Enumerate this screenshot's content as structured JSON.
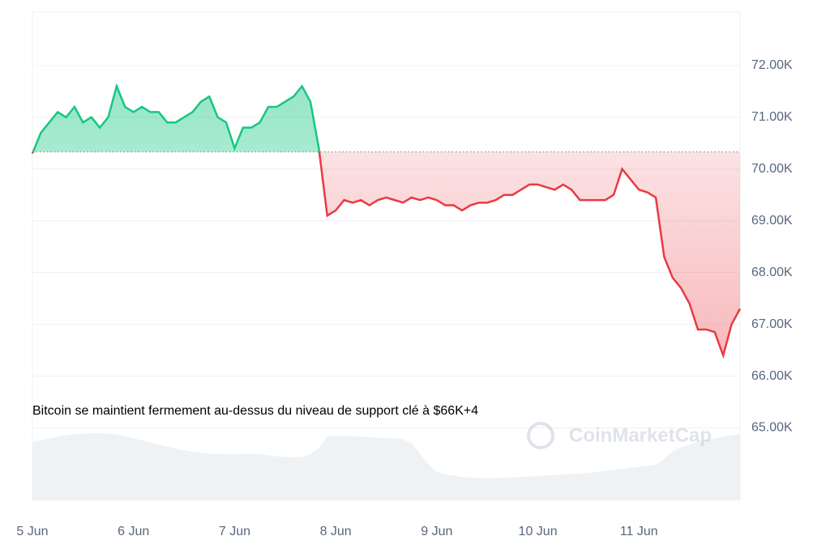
{
  "chart_data": {
    "type": "line",
    "categories": [
      "5 Jun",
      null,
      null,
      null,
      null,
      null,
      null,
      null,
      null,
      null,
      null,
      null,
      "6 Jun",
      null,
      null,
      null,
      null,
      null,
      null,
      null,
      null,
      null,
      null,
      null,
      "7 Jun",
      null,
      null,
      null,
      null,
      null,
      null,
      null,
      null,
      null,
      null,
      null,
      "8 Jun",
      null,
      null,
      null,
      null,
      null,
      null,
      null,
      null,
      null,
      null,
      null,
      "9 Jun",
      null,
      null,
      null,
      null,
      null,
      null,
      null,
      null,
      null,
      null,
      null,
      "10 Jun",
      null,
      null,
      null,
      null,
      null,
      null,
      null,
      null,
      null,
      null,
      null,
      "11 Jun",
      null,
      null,
      null,
      null,
      null,
      null,
      null,
      null,
      null,
      null,
      null,
      null
    ],
    "values": [
      70300,
      70700,
      70900,
      71100,
      71000,
      71200,
      70900,
      71000,
      70800,
      71000,
      71600,
      71200,
      71100,
      71200,
      71100,
      71100,
      70900,
      70900,
      71000,
      71100,
      71300,
      71400,
      71000,
      70900,
      70400,
      70800,
      70800,
      70900,
      71200,
      71200,
      71300,
      71400,
      71600,
      71300,
      70400,
      69100,
      69200,
      69400,
      69350,
      69400,
      69300,
      69400,
      69450,
      69400,
      69350,
      69450,
      69400,
      69450,
      69400,
      69300,
      69300,
      69200,
      69300,
      69350,
      69350,
      69400,
      69500,
      69500,
      69600,
      69700,
      69700,
      69650,
      69600,
      69700,
      69600,
      69400,
      69400,
      69400,
      69400,
      69500,
      70000,
      69800,
      69600,
      69550,
      69450,
      68300,
      67900,
      67700,
      67400,
      66900,
      66900,
      66850,
      66400,
      67000,
      67300
    ],
    "volume": [
      64730,
      64760,
      64800,
      64830,
      64860,
      64880,
      64890,
      64900,
      64900,
      64890,
      64870,
      64840,
      64800,
      64760,
      64720,
      64680,
      64640,
      64600,
      64570,
      64540,
      64520,
      64500,
      64500,
      64490,
      64490,
      64500,
      64500,
      64490,
      64470,
      64450,
      64440,
      64430,
      64440,
      64500,
      64600,
      64840,
      64850,
      64850,
      64840,
      64830,
      64820,
      64810,
      64800,
      64800,
      64780,
      64700,
      64500,
      64300,
      64150,
      64100,
      64080,
      64050,
      64040,
      64030,
      64030,
      64030,
      64040,
      64040,
      64050,
      64060,
      64070,
      64080,
      64090,
      64100,
      64110,
      64120,
      64130,
      64150,
      64170,
      64190,
      64210,
      64230,
      64250,
      64270,
      64290,
      64400,
      64550,
      64620,
      64680,
      64730,
      64770,
      64800,
      64830,
      64860,
      64890
    ],
    "baseline": 70330,
    "up_color": "#16c784",
    "down_color": "#ea3943",
    "volume_color": "#eff2f5",
    "ylim": [
      63600,
      73030
    ],
    "yticks": [
      {
        "value": 65000,
        "label": "65.00K"
      },
      {
        "value": 66000,
        "label": "66.00K"
      },
      {
        "value": 67000,
        "label": "67.00K"
      },
      {
        "value": 68000,
        "label": "68.00K"
      },
      {
        "value": 69000,
        "label": "69.00K"
      },
      {
        "value": 70000,
        "label": "70.00K"
      },
      {
        "value": 71000,
        "label": "71.00K"
      },
      {
        "value": 72000,
        "label": "72.00K"
      }
    ],
    "grid": true,
    "annotation": "Bitcoin se maintient fermement au-dessus du niveau de support clé à $66K+4",
    "watermark": "CoinMarketCap"
  }
}
